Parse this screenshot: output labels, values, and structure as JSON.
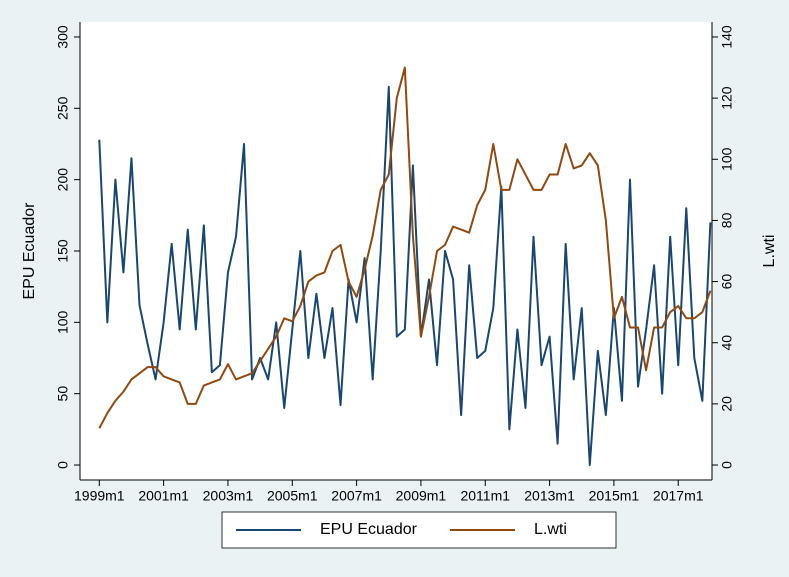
{
  "chart_data": {
    "type": "line",
    "x": [
      1999,
      1999.25,
      1999.5,
      1999.75,
      2000,
      2000.25,
      2000.5,
      2000.75,
      2001,
      2001.25,
      2001.5,
      2001.75,
      2002,
      2002.25,
      2002.5,
      2002.75,
      2003,
      2003.25,
      2003.5,
      2003.75,
      2004,
      2004.25,
      2004.5,
      2004.75,
      2005,
      2005.25,
      2005.5,
      2005.75,
      2006,
      2006.25,
      2006.5,
      2006.75,
      2007,
      2007.25,
      2007.5,
      2007.75,
      2008,
      2008.25,
      2008.5,
      2008.75,
      2009,
      2009.25,
      2009.5,
      2009.75,
      2010,
      2010.25,
      2010.5,
      2010.75,
      2011,
      2011.25,
      2011.5,
      2011.75,
      2012,
      2012.25,
      2012.5,
      2012.75,
      2013,
      2013.25,
      2013.5,
      2013.75,
      2014,
      2014.25,
      2014.5,
      2014.75,
      2015,
      2015.25,
      2015.5,
      2015.75,
      2016,
      2016.25,
      2016.5,
      2016.75,
      2017,
      2017.25,
      2017.5,
      2017.75,
      2018
    ],
    "series": [
      {
        "name": "EPU Ecuador",
        "color": "#1a476f",
        "axis": "y",
        "values": [
          228,
          100,
          200,
          135,
          215,
          112,
          85,
          60,
          100,
          155,
          95,
          165,
          95,
          168,
          65,
          70,
          135,
          160,
          225,
          60,
          75,
          60,
          100,
          40,
          95,
          150,
          75,
          120,
          75,
          110,
          42,
          130,
          100,
          145,
          60,
          150,
          265,
          90,
          95,
          210,
          90,
          130,
          70,
          150,
          130,
          35,
          140,
          75,
          80,
          110,
          195,
          25,
          95,
          40,
          160,
          70,
          90,
          15,
          155,
          60,
          110,
          0,
          80,
          35,
          110,
          45,
          200,
          55,
          95,
          140,
          50,
          160,
          70,
          180,
          75,
          45,
          170
        ]
      },
      {
        "name": "L.wti",
        "color": "#8f4a12",
        "axis": "y2",
        "values": [
          12,
          17,
          21,
          24,
          28,
          30,
          32,
          32,
          29,
          28,
          27,
          20,
          20,
          26,
          27,
          28,
          33,
          28,
          29,
          30,
          34,
          38,
          42,
          48,
          47,
          52,
          60,
          62,
          63,
          70,
          72,
          60,
          55,
          64,
          75,
          90,
          95,
          120,
          130,
          75,
          42,
          55,
          70,
          72,
          78,
          77,
          76,
          85,
          90,
          105,
          90,
          90,
          100,
          95,
          90,
          90,
          95,
          95,
          105,
          97,
          98,
          102,
          98,
          80,
          48,
          55,
          45,
          45,
          31,
          45,
          45,
          50,
          52,
          48,
          48,
          50,
          57
        ]
      }
    ],
    "y_label": "EPU Ecuador",
    "y2_label": "L.wti",
    "xlim": [
      1998.4,
      2018.05
    ],
    "xticks": [
      {
        "value": 1999,
        "label": "1999m1"
      },
      {
        "value": 2001,
        "label": "2001m1"
      },
      {
        "value": 2003,
        "label": "2003m1"
      },
      {
        "value": 2005,
        "label": "2005m1"
      },
      {
        "value": 2007,
        "label": "2007m1"
      },
      {
        "value": 2009,
        "label": "2009m1"
      },
      {
        "value": 2011,
        "label": "2011m1"
      },
      {
        "value": 2013,
        "label": "2013m1"
      },
      {
        "value": 2015,
        "label": "2015m1"
      },
      {
        "value": 2017,
        "label": "2017m1"
      }
    ],
    "ylim": [
      -10.5,
      310.5
    ],
    "yticks": [
      0,
      50,
      100,
      150,
      200,
      250,
      300
    ],
    "y2lim": [
      -4.9,
      144.9
    ],
    "y2ticks": [
      0,
      20,
      40,
      60,
      80,
      100,
      120,
      140
    ],
    "grid": false,
    "legend": "bottom"
  }
}
